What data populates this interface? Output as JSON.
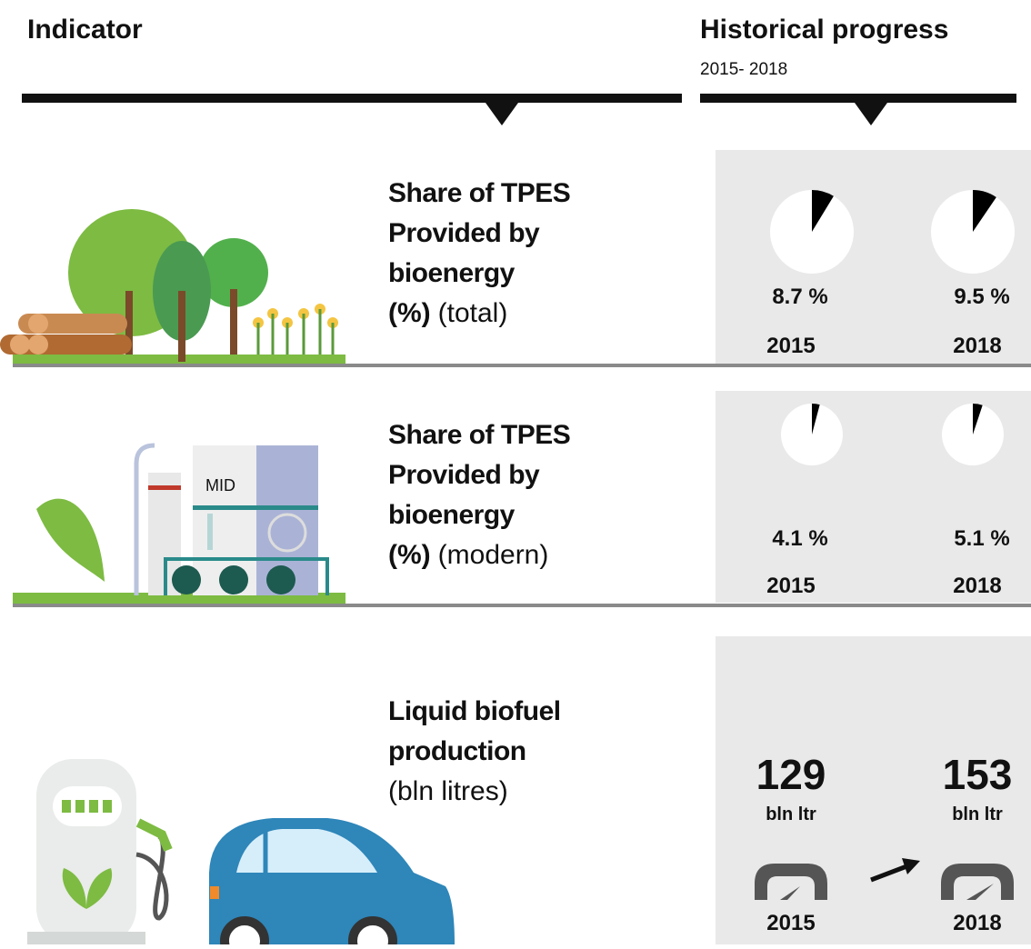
{
  "header": {
    "indicator": "Indicator",
    "progress_title": "Historical progress",
    "progress_period": "2015- 2018"
  },
  "rows": [
    {
      "type": "pie",
      "title": [
        "Share of TPES",
        "Provided by",
        "bioenergy"
      ],
      "unit_bold": "(%)",
      "unit": "(total)",
      "values": [
        8.7,
        9.5
      ],
      "value_labels": [
        "8.7 %",
        "9.5 %"
      ],
      "years": [
        "2015",
        "2018"
      ],
      "full": 100
    },
    {
      "type": "pie",
      "title": [
        "Share of TPES",
        "Provided by",
        "bioenergy"
      ],
      "unit_bold": "(%)",
      "unit": "(modern)",
      "values": [
        4.1,
        5.1
      ],
      "value_labels": [
        "4.1 %",
        "5.1 %"
      ],
      "years": [
        "2015",
        "2018"
      ],
      "full": 100
    },
    {
      "type": "number",
      "title": [
        "Liquid biofuel",
        "production"
      ],
      "unit": "(bln litres)",
      "values": [
        129,
        153
      ],
      "value_unit": "bln ltr",
      "years": [
        "2015",
        "2018"
      ]
    }
  ],
  "illustration_label": "MID"
}
